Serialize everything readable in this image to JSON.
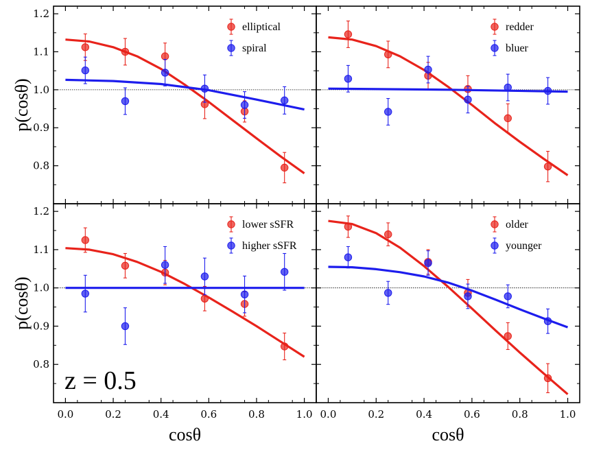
{
  "chart_data": [
    {
      "type": "scatter",
      "panel": "top-left",
      "xlabel": "",
      "ylabel": "p(cosθ)",
      "xlim": [
        -0.05,
        1.05
      ],
      "ylim": [
        0.7,
        1.22
      ],
      "legend_position": "top-right",
      "reference_line": 1.0,
      "series": [
        {
          "name": "elliptical",
          "color": "#e8231b",
          "points": [
            [
              0.083,
              1.112,
              0.035
            ],
            [
              0.25,
              1.1,
              0.035
            ],
            [
              0.417,
              1.088,
              0.035
            ],
            [
              0.583,
              0.962,
              0.038
            ],
            [
              0.75,
              0.943,
              0.028
            ],
            [
              0.917,
              0.795,
              0.04
            ]
          ],
          "curve": [
            [
              0.0,
              1.132
            ],
            [
              0.1,
              1.127
            ],
            [
              0.2,
              1.112
            ],
            [
              0.3,
              1.088
            ],
            [
              0.4,
              1.055
            ],
            [
              0.5,
              1.013
            ],
            [
              0.6,
              0.968
            ],
            [
              0.7,
              0.92
            ],
            [
              0.8,
              0.872
            ],
            [
              0.9,
              0.825
            ],
            [
              1.0,
              0.78
            ]
          ]
        },
        {
          "name": "spiral",
          "color": "#1d1ded",
          "points": [
            [
              0.083,
              1.051,
              0.035
            ],
            [
              0.25,
              0.97,
              0.035
            ],
            [
              0.417,
              1.045,
              0.035
            ],
            [
              0.583,
              1.003,
              0.036
            ],
            [
              0.75,
              0.96,
              0.035
            ],
            [
              0.917,
              0.972,
              0.036
            ]
          ],
          "curve": [
            [
              0.0,
              1.026
            ],
            [
              0.2,
              1.023
            ],
            [
              0.4,
              1.015
            ],
            [
              0.6,
              0.999
            ],
            [
              0.8,
              0.974
            ],
            [
              1.0,
              0.948
            ]
          ]
        }
      ]
    },
    {
      "type": "scatter",
      "panel": "top-right",
      "xlabel": "",
      "ylabel": "",
      "xlim": [
        -0.05,
        1.05
      ],
      "ylim": [
        0.7,
        1.22
      ],
      "legend_position": "top-right",
      "reference_line": 1.0,
      "series": [
        {
          "name": "redder",
          "color": "#e8231b",
          "points": [
            [
              0.083,
              1.146,
              0.035
            ],
            [
              0.25,
              1.093,
              0.035
            ],
            [
              0.417,
              1.037,
              0.035
            ],
            [
              0.583,
              1.002,
              0.035
            ],
            [
              0.75,
              0.925,
              0.038
            ],
            [
              0.917,
              0.798,
              0.04
            ]
          ],
          "curve": [
            [
              0.0,
              1.138
            ],
            [
              0.1,
              1.132
            ],
            [
              0.2,
              1.115
            ],
            [
              0.3,
              1.088
            ],
            [
              0.4,
              1.052
            ],
            [
              0.5,
              1.008
            ],
            [
              0.6,
              0.96
            ],
            [
              0.7,
              0.91
            ],
            [
              0.8,
              0.863
            ],
            [
              0.9,
              0.818
            ],
            [
              1.0,
              0.775
            ]
          ]
        },
        {
          "name": "bluer",
          "color": "#1d1ded",
          "points": [
            [
              0.083,
              1.029,
              0.035
            ],
            [
              0.25,
              0.942,
              0.035
            ],
            [
              0.417,
              1.053,
              0.035
            ],
            [
              0.583,
              0.974,
              0.035
            ],
            [
              0.75,
              1.006,
              0.035
            ],
            [
              0.917,
              0.997,
              0.035
            ]
          ],
          "curve": [
            [
              0.0,
              1.003
            ],
            [
              0.5,
              1.0
            ],
            [
              1.0,
              0.995
            ]
          ]
        }
      ]
    },
    {
      "type": "scatter",
      "panel": "bottom-left",
      "xlabel": "cosθ",
      "ylabel": "p(cosθ)",
      "xlim": [
        -0.05,
        1.05
      ],
      "ylim": [
        0.7,
        1.22
      ],
      "legend_position": "top-right",
      "reference_line": 1.0,
      "series": [
        {
          "name": "lower sSFR",
          "color": "#e8231b",
          "points": [
            [
              0.083,
              1.125,
              0.032
            ],
            [
              0.25,
              1.058,
              0.032
            ],
            [
              0.417,
              1.04,
              0.032
            ],
            [
              0.583,
              0.972,
              0.032
            ],
            [
              0.75,
              0.958,
              0.032
            ],
            [
              0.917,
              0.847,
              0.035
            ]
          ],
          "curve": [
            [
              0.0,
              1.104
            ],
            [
              0.1,
              1.1
            ],
            [
              0.2,
              1.088
            ],
            [
              0.3,
              1.068
            ],
            [
              0.4,
              1.042
            ],
            [
              0.5,
              1.01
            ],
            [
              0.6,
              0.975
            ],
            [
              0.7,
              0.938
            ],
            [
              0.8,
              0.9
            ],
            [
              0.9,
              0.86
            ],
            [
              1.0,
              0.82
            ]
          ]
        },
        {
          "name": "higher sSFR",
          "color": "#1d1ded",
          "points": [
            [
              0.083,
              0.985,
              0.048
            ],
            [
              0.25,
              0.9,
              0.048
            ],
            [
              0.417,
              1.06,
              0.048
            ],
            [
              0.583,
              1.03,
              0.048
            ],
            [
              0.75,
              0.983,
              0.048
            ],
            [
              0.917,
              1.042,
              0.048
            ]
          ],
          "curve": [
            [
              0.0,
              1.0
            ],
            [
              1.0,
              1.0
            ]
          ]
        }
      ],
      "annotation": "z = 0.5"
    },
    {
      "type": "scatter",
      "panel": "bottom-right",
      "xlabel": "cosθ",
      "ylabel": "",
      "xlim": [
        -0.05,
        1.05
      ],
      "ylim": [
        0.7,
        1.22
      ],
      "legend_position": "top-right",
      "reference_line": 1.0,
      "series": [
        {
          "name": "older",
          "color": "#e8231b",
          "points": [
            [
              0.083,
              1.16,
              0.028
            ],
            [
              0.25,
              1.14,
              0.03
            ],
            [
              0.417,
              1.068,
              0.032
            ],
            [
              0.583,
              0.987,
              0.035
            ],
            [
              0.75,
              0.874,
              0.035
            ],
            [
              0.917,
              0.764,
              0.038
            ]
          ],
          "curve": [
            [
              0.0,
              1.175
            ],
            [
              0.1,
              1.167
            ],
            [
              0.2,
              1.143
            ],
            [
              0.3,
              1.105
            ],
            [
              0.4,
              1.057
            ],
            [
              0.5,
              1.003
            ],
            [
              0.6,
              0.946
            ],
            [
              0.7,
              0.888
            ],
            [
              0.8,
              0.831
            ],
            [
              0.9,
              0.776
            ],
            [
              1.0,
              0.722
            ]
          ]
        },
        {
          "name": "younger",
          "color": "#1d1ded",
          "points": [
            [
              0.083,
              1.08,
              0.028
            ],
            [
              0.25,
              0.987,
              0.03
            ],
            [
              0.417,
              1.065,
              0.032
            ],
            [
              0.583,
              0.978,
              0.032
            ],
            [
              0.75,
              0.978,
              0.03
            ],
            [
              0.917,
              0.913,
              0.032
            ]
          ],
          "curve": [
            [
              0.0,
              1.055
            ],
            [
              0.1,
              1.054
            ],
            [
              0.2,
              1.049
            ],
            [
              0.3,
              1.041
            ],
            [
              0.4,
              1.03
            ],
            [
              0.5,
              1.014
            ],
            [
              0.6,
              0.993
            ],
            [
              0.7,
              0.969
            ],
            [
              0.8,
              0.944
            ],
            [
              0.9,
              0.92
            ],
            [
              1.0,
              0.897
            ]
          ]
        }
      ]
    }
  ],
  "axes": {
    "x_ticks": [
      "0.0",
      "0.2",
      "0.4",
      "0.6",
      "0.8",
      "1.0"
    ],
    "y_ticks": [
      "0.8",
      "0.9",
      "1.0",
      "1.1",
      "1.2"
    ]
  }
}
